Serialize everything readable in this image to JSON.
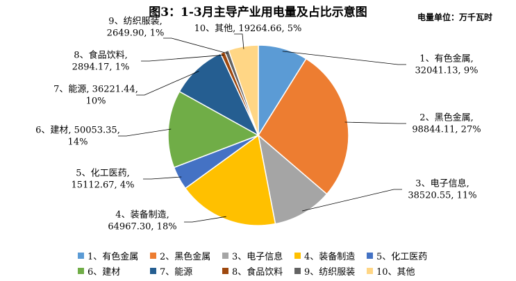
{
  "header": {
    "title": "图3：1-3月主导产业用电量及占比示意图",
    "unit": "电量单位：万千瓦时"
  },
  "chart_data": {
    "type": "pie",
    "categories": [
      "1、有色金属",
      "2、黑色金属",
      "3、电子信息",
      "4、装备制造",
      "5、化工医药",
      "6、建材",
      "7、能源",
      "8、食品饮料",
      "9、纺织服装",
      "10、其他"
    ],
    "values": [
      32041.13,
      98844.11,
      38520.55,
      64967.3,
      15112.67,
      50053.35,
      36221.44,
      2894.17,
      2649.9,
      19264.66
    ],
    "percents": [
      "9%",
      "27%",
      "11%",
      "18%",
      "4%",
      "14%",
      "10%",
      "1%",
      "1%",
      "5%"
    ],
    "data_labels": [
      [
        "1、有色金属,",
        "32041.13, 9%"
      ],
      [
        "2、黑色金属,",
        "98844.11, 27%"
      ],
      [
        "3、电子信息,",
        "38520.55, 11%"
      ],
      [
        "4、装备制造,",
        "64967.30, 18%"
      ],
      [
        "5、化工医药,",
        "15112.67, 4%"
      ],
      [
        "6、建材, 50053.35,",
        "14%"
      ],
      [
        "7、能源, 36221.44,",
        "10%"
      ],
      [
        "8、食品饮料,",
        "2894.17, 1%"
      ],
      [
        "9、纺织服装,",
        "2649.90, 1%"
      ],
      [
        "10、其他, 19264.66, 5%"
      ]
    ],
    "colors": [
      "#5b9bd5",
      "#ed7d31",
      "#a5a5a5",
      "#ffc000",
      "#4472c4",
      "#70ad47",
      "#255e91",
      "#9e480e",
      "#636363",
      "#ffd685"
    ],
    "legend_position": "bottom",
    "start_angle_deg": 0,
    "direction": "clockwise"
  }
}
